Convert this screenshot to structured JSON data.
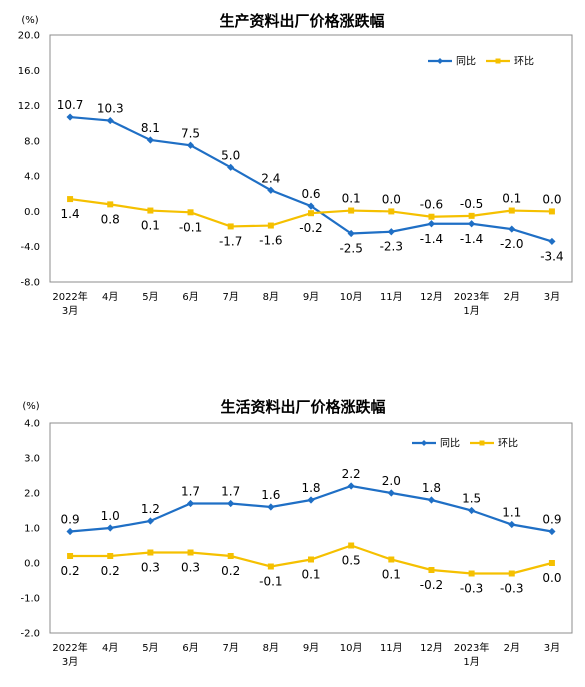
{
  "chart_data": [
    {
      "type": "line",
      "title": "生产资料出厂价格涨跌幅",
      "unit": "(%)",
      "categories": [
        "2022年\n3月",
        "4月",
        "5月",
        "6月",
        "7月",
        "8月",
        "9月",
        "10月",
        "11月",
        "12月",
        "2023年\n1月",
        "2月",
        "3月"
      ],
      "ylim": [
        -8.0,
        20.0
      ],
      "yticks": [
        "20.0",
        "16.0",
        "12.0",
        "8.0",
        "4.0",
        "0.0",
        "-4.0",
        "-8.0"
      ],
      "ytick_values": [
        20,
        16,
        12,
        8,
        4,
        0,
        -4,
        -8
      ],
      "grid": false,
      "legend_position": "top-right",
      "series": [
        {
          "name": "同比",
          "color": "#1f6fc5",
          "values": [
            10.7,
            10.3,
            8.1,
            7.5,
            5.0,
            2.4,
            0.6,
            -2.5,
            -2.3,
            -1.4,
            -1.4,
            -2.0,
            -3.4
          ],
          "labels": [
            "10.7",
            "10.3",
            "8.1",
            "7.5",
            "5.0",
            "2.4",
            "0.6",
            "-2.5",
            "-2.3",
            "-1.4",
            "-1.4",
            "-2.0",
            "-3.4"
          ],
          "label_positions": [
            "above",
            "above",
            "above",
            "above",
            "above",
            "above",
            "above",
            "below",
            "below",
            "below",
            "below",
            "below",
            "below"
          ]
        },
        {
          "name": "环比",
          "color": "#f5c000",
          "values": [
            1.4,
            0.8,
            0.1,
            -0.1,
            -1.7,
            -1.6,
            -0.2,
            0.1,
            0.0,
            -0.6,
            -0.5,
            0.1,
            0.0
          ],
          "labels": [
            "1.4",
            "0.8",
            "0.1",
            "-0.1",
            "-1.7",
            "-1.6",
            "-0.2",
            "0.1",
            "0.0",
            "-0.6",
            "-0.5",
            "0.1",
            "0.0"
          ],
          "label_positions": [
            "below",
            "below",
            "below",
            "below",
            "below",
            "below",
            "below",
            "above",
            "above",
            "above",
            "above",
            "above",
            "above"
          ]
        }
      ]
    },
    {
      "type": "line",
      "title": "生活资料出厂价格涨跌幅",
      "unit": "(%)",
      "categories": [
        "2022年\n3月",
        "4月",
        "5月",
        "6月",
        "7月",
        "8月",
        "9月",
        "10月",
        "11月",
        "12月",
        "2023年\n1月",
        "2月",
        "3月"
      ],
      "ylim": [
        -2.0,
        4.0
      ],
      "yticks": [
        "4.0",
        "3.0",
        "2.0",
        "1.0",
        "0.0",
        "-1.0",
        "-2.0"
      ],
      "ytick_values": [
        4,
        3,
        2,
        1,
        0,
        -1,
        -2
      ],
      "grid": false,
      "legend_position": "top-right",
      "series": [
        {
          "name": "同比",
          "color": "#1f6fc5",
          "values": [
            0.9,
            1.0,
            1.2,
            1.7,
            1.7,
            1.6,
            1.8,
            2.2,
            2.0,
            1.8,
            1.5,
            1.1,
            0.9
          ],
          "labels": [
            "0.9",
            "1.0",
            "1.2",
            "1.7",
            "1.7",
            "1.6",
            "1.8",
            "2.2",
            "2.0",
            "1.8",
            "1.5",
            "1.1",
            "0.9"
          ],
          "label_positions": [
            "above",
            "above",
            "above",
            "above",
            "above",
            "above",
            "above",
            "above",
            "above",
            "above",
            "above",
            "above",
            "above"
          ]
        },
        {
          "name": "环比",
          "color": "#f5c000",
          "values": [
            0.2,
            0.2,
            0.3,
            0.3,
            0.2,
            -0.1,
            0.1,
            0.5,
            0.1,
            -0.2,
            -0.3,
            -0.3,
            0.0
          ],
          "labels": [
            "0.2",
            "0.2",
            "0.3",
            "0.3",
            "0.2",
            "-0.1",
            "0.1",
            "0.5",
            "0.1",
            "-0.2",
            "-0.3",
            "-0.3",
            "0.0"
          ],
          "label_positions": [
            "below",
            "below",
            "below",
            "below",
            "below",
            "below",
            "below",
            "below",
            "below",
            "below",
            "below",
            "below",
            "below"
          ]
        }
      ]
    }
  ]
}
